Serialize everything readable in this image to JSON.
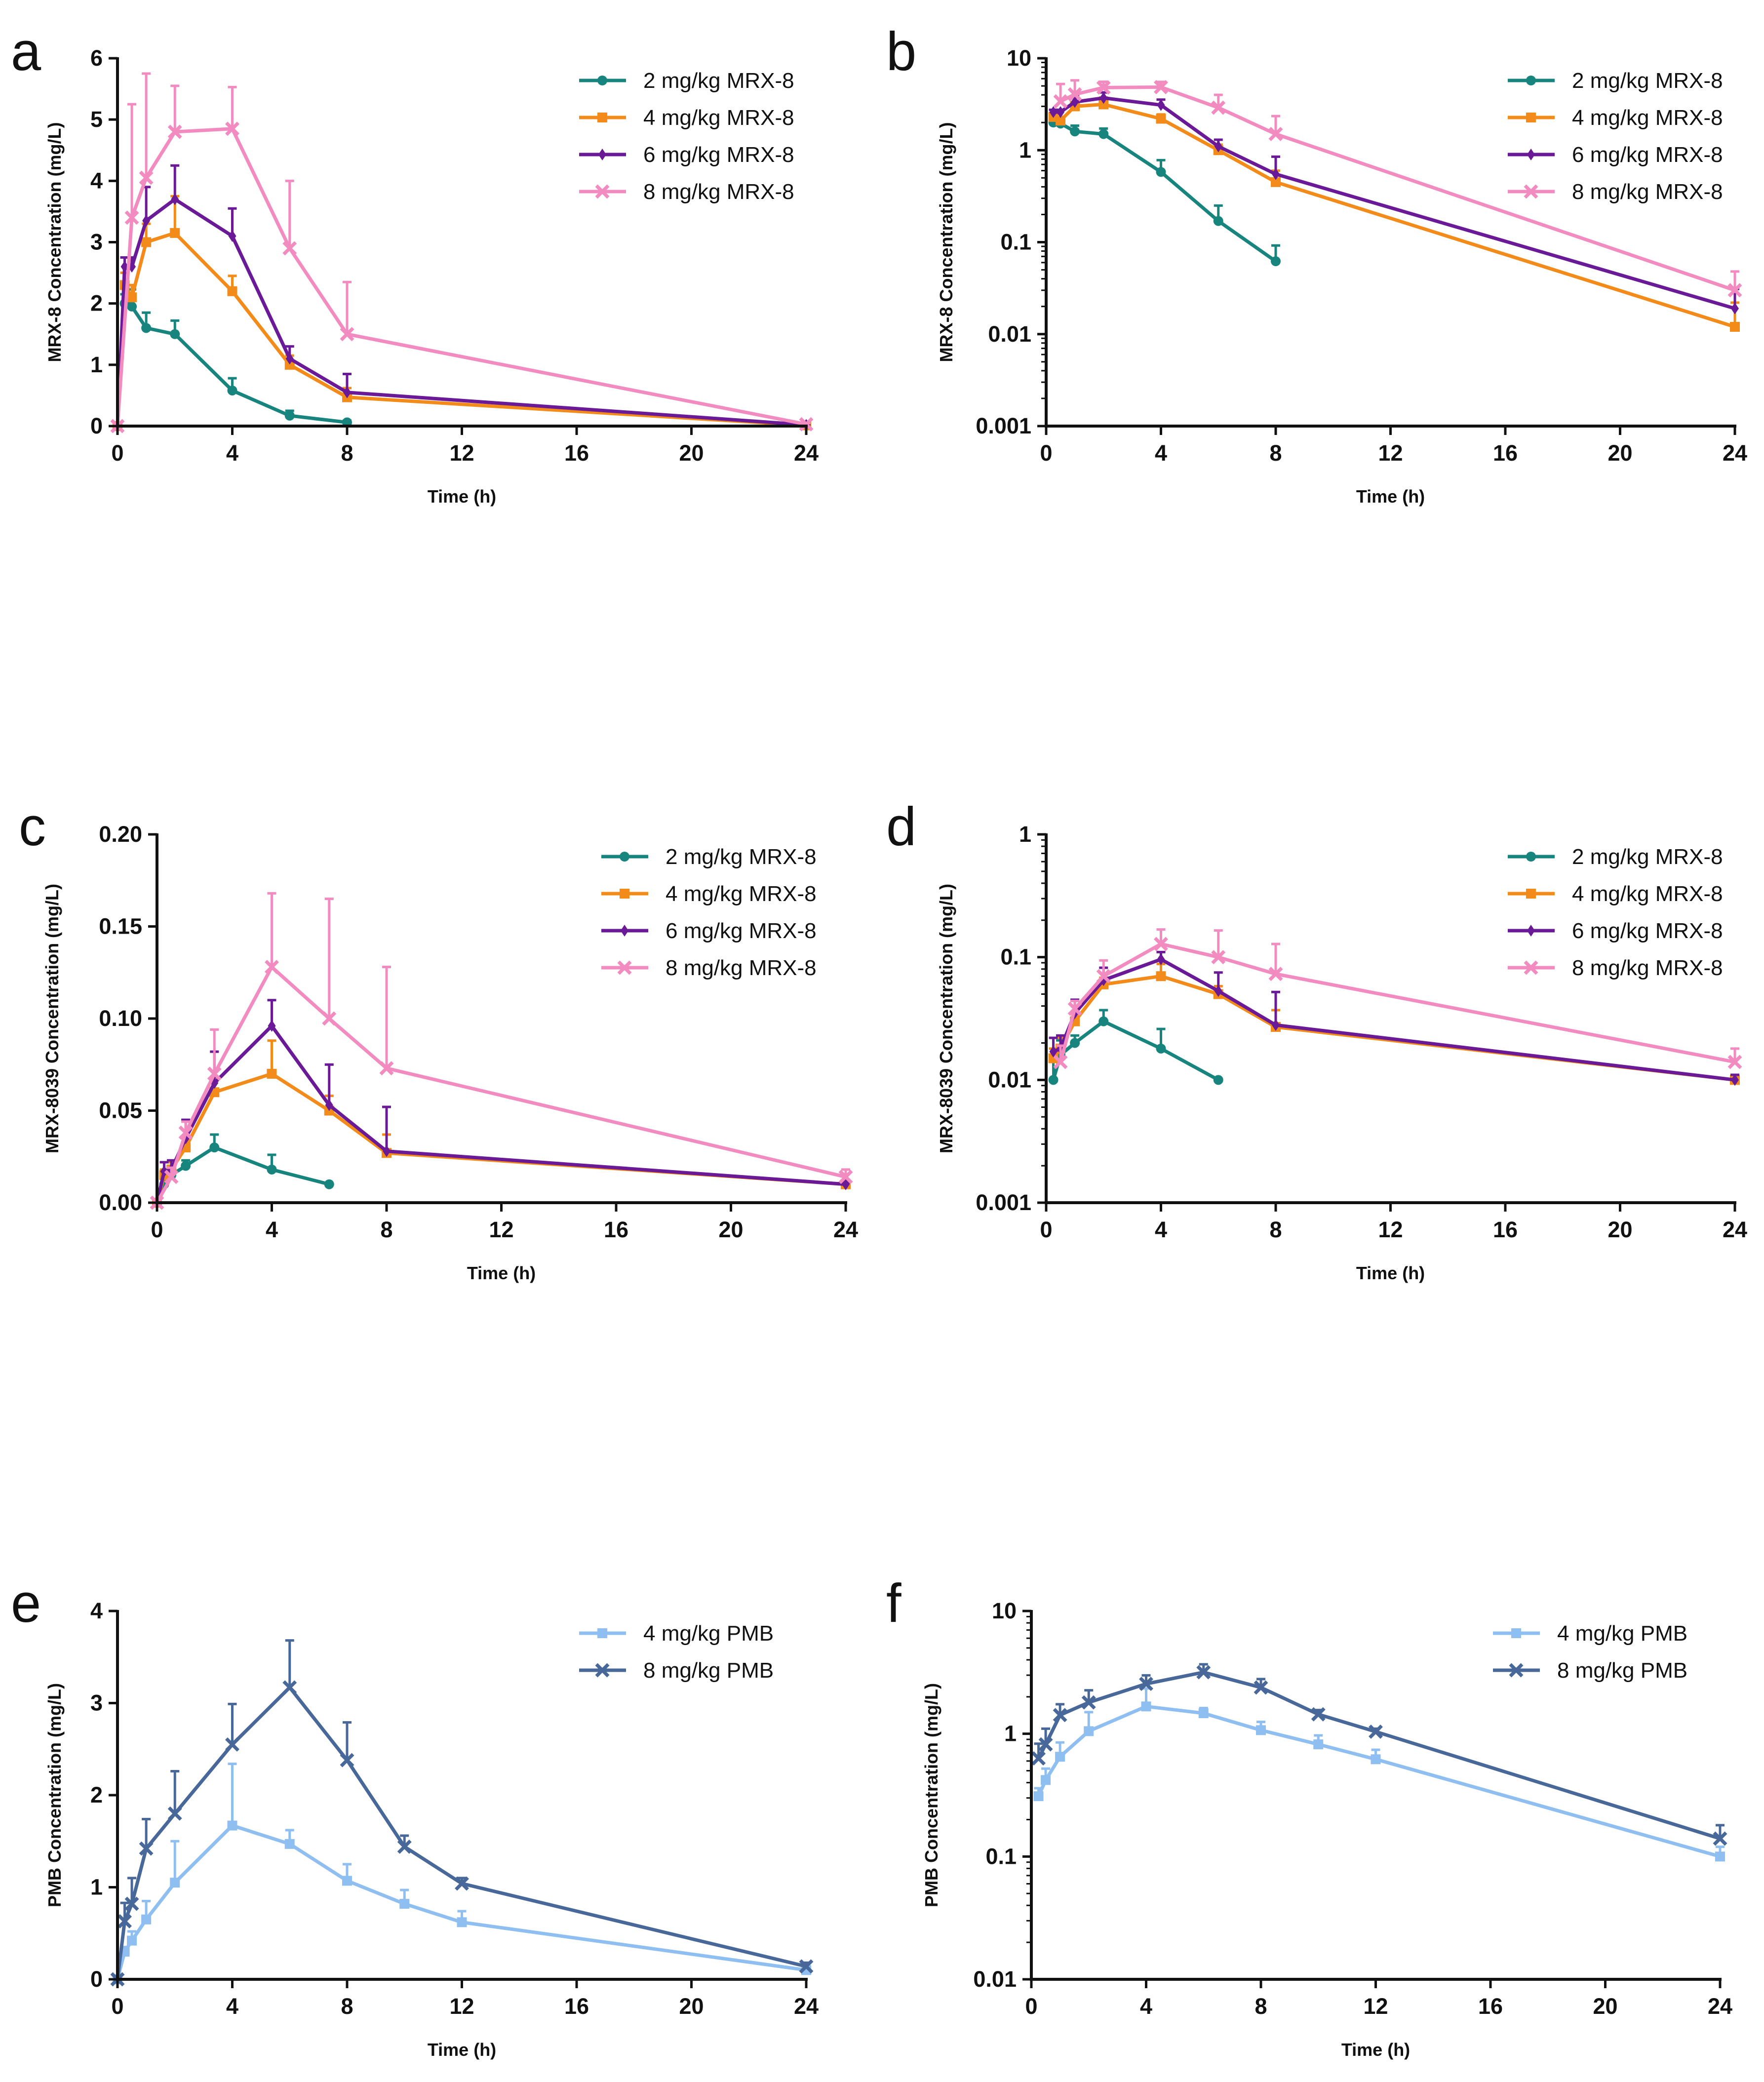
{
  "chart_data": [
    {
      "type": "line",
      "panel": "a",
      "yscale": "linear",
      "xlabel": "Time (h)",
      "ylabel": "MRX-8 Concentration (mg/L)",
      "xlim": [
        0,
        24
      ],
      "ylim": [
        0,
        6
      ],
      "xticks": [
        0,
        4,
        8,
        12,
        16,
        20,
        24
      ],
      "xtick_labels": [
        "0",
        "4",
        "8",
        "12",
        "16",
        "20",
        "24"
      ],
      "yticks": [
        0,
        1,
        2,
        3,
        4,
        5,
        6
      ],
      "ytick_labels": [
        "0",
        "1",
        "2",
        "3",
        "4",
        "5",
        "6"
      ],
      "legend_position": "top-right",
      "series": [
        {
          "name": "2 mg/kg MRX-8",
          "color": "#17857E",
          "marker": "circle",
          "x": [
            0,
            0.25,
            0.5,
            1,
            2,
            4,
            6,
            8
          ],
          "values": [
            0,
            2.0,
            1.95,
            1.6,
            1.5,
            0.58,
            0.17,
            0.06
          ],
          "errors": [
            0,
            0.15,
            0.28,
            0.25,
            0.22,
            0.2,
            0.08,
            0.03
          ]
        },
        {
          "name": "4 mg/kg MRX-8",
          "color": "#F38B1A",
          "marker": "square",
          "x": [
            0,
            0.25,
            0.5,
            1,
            2,
            4,
            6,
            8,
            24
          ],
          "values": [
            0,
            2.3,
            2.1,
            3.0,
            3.15,
            2.2,
            1.0,
            0.47,
            0.012
          ],
          "errors": [
            0,
            0.2,
            0.2,
            0.3,
            0.6,
            0.25,
            0.15,
            0.15,
            0.01
          ]
        },
        {
          "name": "6 mg/kg MRX-8",
          "color": "#6A1A96",
          "marker": "diamond",
          "x": [
            0,
            0.25,
            0.5,
            1,
            2,
            4,
            6,
            8,
            24
          ],
          "values": [
            0,
            2.6,
            2.6,
            3.35,
            3.7,
            3.1,
            1.1,
            0.55,
            0.019
          ],
          "errors": [
            0,
            0.15,
            0.15,
            0.55,
            0.55,
            0.45,
            0.2,
            0.3,
            0.012
          ]
        },
        {
          "name": "8 mg/kg MRX-8",
          "color": "#F28CC0",
          "marker": "x",
          "x": [
            0,
            0.5,
            1,
            2,
            4,
            6,
            8,
            24
          ],
          "values": [
            0,
            3.4,
            4.05,
            4.8,
            4.85,
            2.9,
            1.5,
            0.03
          ],
          "errors": [
            0,
            1.85,
            1.7,
            0.75,
            0.68,
            1.1,
            0.85,
            0.018
          ]
        }
      ]
    },
    {
      "type": "line",
      "panel": "b",
      "yscale": "log",
      "xlabel": "Time (h)",
      "ylabel": "MRX-8 Concentration (mg/L)",
      "xlim": [
        0,
        24
      ],
      "ylim": [
        0.001,
        10
      ],
      "xticks": [
        0,
        4,
        8,
        12,
        16,
        20,
        24
      ],
      "xtick_labels": [
        "0",
        "4",
        "8",
        "12",
        "16",
        "20",
        "24"
      ],
      "yticks": [
        0.001,
        0.01,
        0.1,
        1,
        10
      ],
      "ytick_labels": [
        "0.001",
        "0.01",
        "0.1",
        "1",
        "10"
      ],
      "legend_position": "top-right",
      "series": [
        {
          "name": "2 mg/kg MRX-8",
          "color": "#17857E",
          "marker": "circle",
          "x": [
            0.25,
            0.5,
            1,
            2,
            4,
            6,
            8
          ],
          "values": [
            2.0,
            1.95,
            1.6,
            1.5,
            0.58,
            0.17,
            0.062
          ],
          "errors": [
            0.15,
            0.28,
            0.25,
            0.22,
            0.2,
            0.08,
            0.03
          ]
        },
        {
          "name": "4 mg/kg MRX-8",
          "color": "#F38B1A",
          "marker": "square",
          "x": [
            0.25,
            0.5,
            1,
            2,
            4,
            6,
            8,
            24
          ],
          "values": [
            2.3,
            2.1,
            3.0,
            3.15,
            2.2,
            1.0,
            0.45,
            0.012
          ],
          "errors": [
            0.2,
            0.2,
            0.3,
            0.6,
            0.25,
            0.15,
            0.15,
            0.01
          ]
        },
        {
          "name": "6 mg/kg MRX-8",
          "color": "#6A1A96",
          "marker": "diamond",
          "x": [
            0.25,
            0.5,
            1,
            2,
            4,
            6,
            8,
            24
          ],
          "values": [
            2.6,
            2.6,
            3.35,
            3.7,
            3.1,
            1.1,
            0.55,
            0.019
          ],
          "errors": [
            0.15,
            0.15,
            0.55,
            0.55,
            0.45,
            0.2,
            0.3,
            0.012
          ]
        },
        {
          "name": "8 mg/kg MRX-8",
          "color": "#F28CC0",
          "marker": "x",
          "x": [
            0.5,
            1,
            2,
            4,
            6,
            8,
            24
          ],
          "values": [
            3.4,
            4.05,
            4.8,
            4.85,
            2.9,
            1.5,
            0.03
          ],
          "errors": [
            1.85,
            1.7,
            0.75,
            0.68,
            1.1,
            0.85,
            0.018
          ]
        }
      ]
    },
    {
      "type": "line",
      "panel": "c",
      "yscale": "linear",
      "xlabel": "Time (h)",
      "ylabel": "MRX-8039 Concentration (mg/L)",
      "xlim": [
        0,
        24
      ],
      "ylim": [
        0,
        0.2
      ],
      "xticks": [
        0,
        4,
        8,
        12,
        16,
        20,
        24
      ],
      "xtick_labels": [
        "0",
        "4",
        "8",
        "12",
        "16",
        "20",
        "24"
      ],
      "yticks": [
        0,
        0.05,
        0.1,
        0.15,
        0.2
      ],
      "ytick_labels": [
        "0.00",
        "0.05",
        "0.10",
        "0.15",
        "0.20"
      ],
      "legend_position": "top-right",
      "series": [
        {
          "name": "2 mg/kg MRX-8",
          "color": "#17857E",
          "marker": "circle",
          "x": [
            0,
            0.25,
            0.5,
            1,
            2,
            4,
            6
          ],
          "values": [
            0,
            0.01,
            0.015,
            0.02,
            0.03,
            0.018,
            0.01
          ],
          "errors": [
            0,
            0.005,
            0.005,
            0.003,
            0.007,
            0.008,
            0
          ]
        },
        {
          "name": "4 mg/kg MRX-8",
          "color": "#F38B1A",
          "marker": "square",
          "x": [
            0,
            0.25,
            0.5,
            1,
            2,
            4,
            6,
            8,
            24
          ],
          "values": [
            0,
            0.015,
            0.018,
            0.03,
            0.06,
            0.07,
            0.05,
            0.027,
            0.01
          ],
          "errors": [
            0,
            0.003,
            0.004,
            0.005,
            0.008,
            0.018,
            0.008,
            0.01,
            0.001
          ]
        },
        {
          "name": "6 mg/kg MRX-8",
          "color": "#6A1A96",
          "marker": "diamond",
          "x": [
            0,
            0.25,
            0.5,
            1,
            2,
            4,
            6,
            8,
            24
          ],
          "values": [
            0,
            0.017,
            0.018,
            0.035,
            0.065,
            0.096,
            0.053,
            0.028,
            0.01
          ],
          "errors": [
            0,
            0.005,
            0.005,
            0.01,
            0.017,
            0.014,
            0.022,
            0.024,
            0.001
          ]
        },
        {
          "name": "8 mg/kg MRX-8",
          "color": "#F28CC0",
          "marker": "x",
          "x": [
            0,
            0.5,
            1,
            2,
            4,
            6,
            8,
            24
          ],
          "values": [
            0,
            0.014,
            0.038,
            0.07,
            0.128,
            0.1,
            0.073,
            0.014
          ],
          "errors": [
            0,
            0.005,
            0.006,
            0.024,
            0.04,
            0.065,
            0.055,
            0.004
          ]
        }
      ]
    },
    {
      "type": "line",
      "panel": "d",
      "yscale": "log",
      "xlabel": "Time (h)",
      "ylabel": "MRX-8039 Concentration (mg/L)",
      "xlim": [
        0,
        24
      ],
      "ylim": [
        0.001,
        1
      ],
      "xticks": [
        0,
        4,
        8,
        12,
        16,
        20,
        24
      ],
      "xtick_labels": [
        "0",
        "4",
        "8",
        "12",
        "16",
        "20",
        "24"
      ],
      "yticks": [
        0.001,
        0.01,
        0.1,
        1
      ],
      "ytick_labels": [
        "0.001",
        "0.01",
        "0.1",
        "1"
      ],
      "legend_position": "top-right",
      "series": [
        {
          "name": "2 mg/kg MRX-8",
          "color": "#17857E",
          "marker": "circle",
          "x": [
            0.25,
            0.5,
            1,
            2,
            4,
            6
          ],
          "values": [
            0.01,
            0.016,
            0.02,
            0.03,
            0.018,
            0.01
          ],
          "errors": [
            0.005,
            0.005,
            0.003,
            0.007,
            0.008,
            0
          ]
        },
        {
          "name": "4 mg/kg MRX-8",
          "color": "#F38B1A",
          "marker": "square",
          "x": [
            0.25,
            0.5,
            1,
            2,
            4,
            6,
            8,
            24
          ],
          "values": [
            0.015,
            0.018,
            0.03,
            0.06,
            0.07,
            0.05,
            0.027,
            0.01
          ],
          "errors": [
            0.003,
            0.004,
            0.005,
            0.008,
            0.018,
            0.008,
            0.01,
            0.001
          ]
        },
        {
          "name": "6 mg/kg MRX-8",
          "color": "#6A1A96",
          "marker": "diamond",
          "x": [
            0.25,
            0.5,
            1,
            2,
            4,
            6,
            8,
            24
          ],
          "values": [
            0.017,
            0.018,
            0.035,
            0.065,
            0.096,
            0.053,
            0.028,
            0.01
          ],
          "errors": [
            0.005,
            0.005,
            0.01,
            0.017,
            0.014,
            0.022,
            0.024,
            0.001
          ]
        },
        {
          "name": "8 mg/kg MRX-8",
          "color": "#F28CC0",
          "marker": "x",
          "x": [
            0.5,
            1,
            2,
            4,
            6,
            8,
            24
          ],
          "values": [
            0.014,
            0.038,
            0.07,
            0.128,
            0.1,
            0.073,
            0.014
          ],
          "errors": [
            0.005,
            0.006,
            0.024,
            0.04,
            0.065,
            0.055,
            0.004
          ]
        }
      ]
    },
    {
      "type": "line",
      "panel": "e",
      "yscale": "linear",
      "xlabel": "Time (h)",
      "ylabel": "PMB Concentration (mg/L)",
      "xlim": [
        0,
        24
      ],
      "ylim": [
        0,
        4
      ],
      "xticks": [
        0,
        4,
        8,
        12,
        16,
        20,
        24
      ],
      "xtick_labels": [
        "0",
        "4",
        "8",
        "12",
        "16",
        "20",
        "24"
      ],
      "yticks": [
        0,
        1,
        2,
        3,
        4
      ],
      "ytick_labels": [
        "0",
        "1",
        "2",
        "3",
        "4"
      ],
      "legend_position": "top-right",
      "series": [
        {
          "name": "4 mg/kg PMB",
          "color": "#8FBFF0",
          "marker": "square",
          "x": [
            0,
            0.25,
            0.5,
            1,
            2,
            4,
            6,
            8,
            10,
            12,
            24
          ],
          "values": [
            0,
            0.3,
            0.42,
            0.65,
            1.05,
            1.67,
            1.47,
            1.07,
            0.82,
            0.62,
            0.1
          ],
          "errors": [
            0,
            0.05,
            0.1,
            0.2,
            0.45,
            0.67,
            0.15,
            0.18,
            0.15,
            0.12,
            0.02
          ]
        },
        {
          "name": "8 mg/kg PMB",
          "color": "#48689A",
          "marker": "x",
          "x": [
            0,
            0.25,
            0.5,
            1,
            2,
            4,
            6,
            8,
            10,
            12,
            24
          ],
          "values": [
            0,
            0.63,
            0.82,
            1.42,
            1.8,
            2.55,
            3.17,
            2.38,
            1.44,
            1.04,
            0.14
          ],
          "errors": [
            0,
            0.2,
            0.28,
            0.32,
            0.46,
            0.44,
            0.51,
            0.41,
            0.12,
            0.06,
            0.04
          ]
        }
      ]
    },
    {
      "type": "line",
      "panel": "f",
      "yscale": "log",
      "xlabel": "Time (h)",
      "ylabel": "PMB Concentration (mg/L)",
      "xlim": [
        0,
        24
      ],
      "ylim": [
        0.01,
        10
      ],
      "xticks": [
        0,
        4,
        8,
        12,
        16,
        20,
        24
      ],
      "xtick_labels": [
        "0",
        "4",
        "8",
        "12",
        "16",
        "20",
        "24"
      ],
      "yticks": [
        0.01,
        0.1,
        1,
        10
      ],
      "ytick_labels": [
        "0.01",
        "0.1",
        "1",
        "10"
      ],
      "legend_position": "top-right",
      "series": [
        {
          "name": "4 mg/kg PMB",
          "color": "#8FBFF0",
          "marker": "square",
          "x": [
            0.25,
            0.5,
            1,
            2,
            4,
            6,
            8,
            10,
            12,
            24
          ],
          "values": [
            0.31,
            0.42,
            0.65,
            1.05,
            1.67,
            1.47,
            1.07,
            0.82,
            0.62,
            0.1
          ],
          "errors": [
            0.05,
            0.1,
            0.2,
            0.45,
            0.67,
            0.15,
            0.18,
            0.15,
            0.12,
            0.02
          ]
        },
        {
          "name": "8 mg/kg PMB",
          "color": "#48689A",
          "marker": "x",
          "x": [
            0.25,
            0.5,
            1,
            2,
            4,
            6,
            8,
            10,
            12,
            24
          ],
          "values": [
            0.63,
            0.82,
            1.42,
            1.8,
            2.55,
            3.17,
            2.38,
            1.44,
            1.04,
            0.14
          ],
          "errors": [
            0.2,
            0.28,
            0.32,
            0.46,
            0.44,
            0.51,
            0.41,
            0.12,
            0.06,
            0.04
          ]
        }
      ]
    }
  ]
}
